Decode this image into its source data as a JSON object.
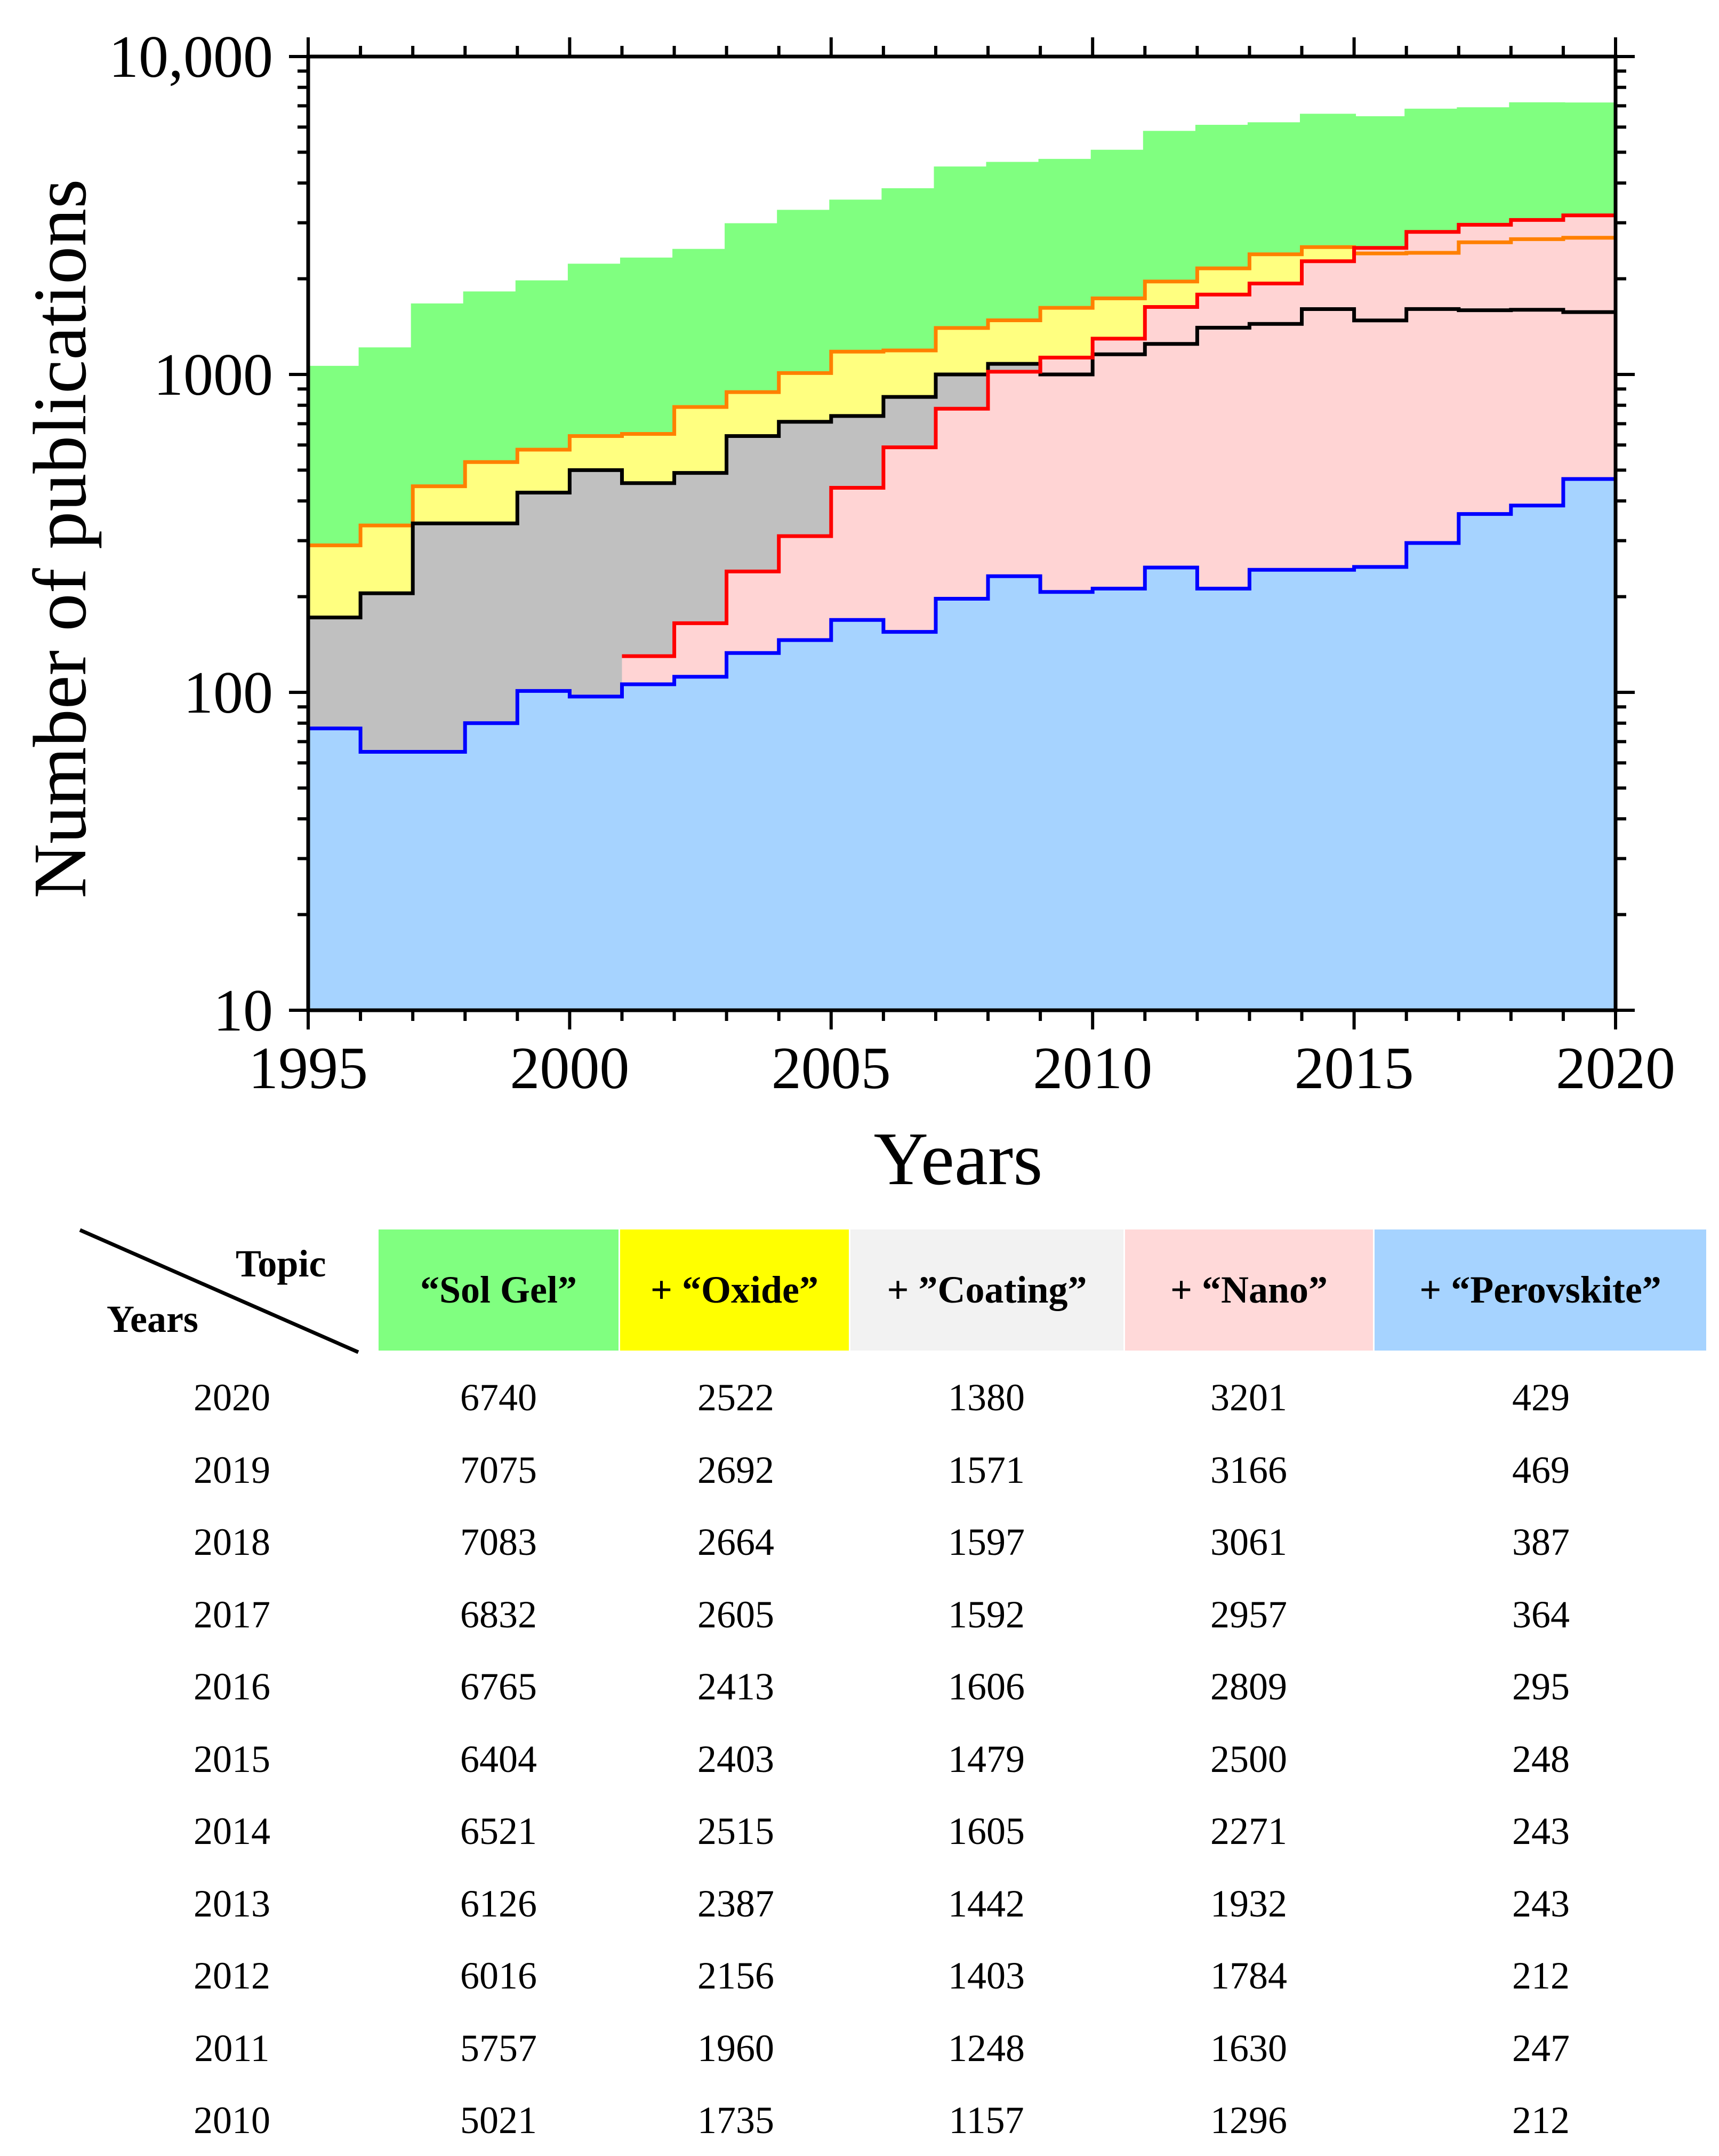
{
  "chart_data": {
    "type": "area",
    "title": "",
    "xlabel": "Years",
    "ylabel": "Number of publications",
    "yscale": "log",
    "ylim": [
      10,
      10000
    ],
    "xlim": [
      1995,
      2020
    ],
    "xticks": [
      "1995",
      "2000",
      "2005",
      "2010",
      "2015",
      "2020"
    ],
    "yticks": [
      "10",
      "100",
      "1000",
      "10,000"
    ],
    "x": [
      1995,
      1996,
      1997,
      1998,
      1999,
      2000,
      2001,
      2002,
      2003,
      2004,
      2005,
      2006,
      2007,
      2008,
      2009,
      2010,
      2011,
      2012,
      2013,
      2014,
      2015,
      2016,
      2017,
      2018,
      2019
    ],
    "series": [
      {
        "name": "Sol Gel",
        "fill": "#80ff80",
        "line": "#80ff80",
        "values": [
          1050,
          1200,
          1650,
          1800,
          1950,
          2200,
          2300,
          2450,
          2950,
          3250,
          3500,
          3800,
          4450,
          4600,
          4700,
          5021,
          5757,
          6016,
          6126,
          6521,
          6404,
          6765,
          6832,
          7083,
          7075
        ]
      },
      {
        "name": "Oxide",
        "fill": "#ffff80",
        "line": "#ff8000",
        "values": [
          290,
          335,
          445,
          530,
          580,
          640,
          650,
          790,
          880,
          1010,
          1180,
          1190,
          1400,
          1480,
          1620,
          1735,
          1960,
          2156,
          2387,
          2515,
          2403,
          2413,
          2605,
          2664,
          2692
        ]
      },
      {
        "name": "Coating",
        "fill": "#c0c0c0",
        "line": "#000000",
        "values": [
          172,
          205,
          340,
          340,
          425,
          500,
          455,
          490,
          640,
          710,
          740,
          850,
          1000,
          1080,
          1000,
          1157,
          1248,
          1403,
          1442,
          1605,
          1479,
          1606,
          1592,
          1597,
          1571
        ]
      },
      {
        "name": "Nano",
        "fill": "#ffd4d4",
        "line": "#ff0000",
        "start_index": 6,
        "values": [
          null,
          null,
          null,
          null,
          null,
          null,
          130,
          165,
          240,
          310,
          440,
          590,
          780,
          1020,
          1130,
          1296,
          1630,
          1784,
          1932,
          2271,
          2500,
          2809,
          2957,
          3061,
          3166
        ]
      },
      {
        "name": "Perovskite",
        "fill": "#a6d3ff",
        "line": "#0000ff",
        "values": [
          77,
          65,
          65,
          80,
          101,
          97,
          106,
          112,
          133,
          146,
          169,
          155,
          197,
          232,
          207,
          212,
          247,
          212,
          243,
          243,
          248,
          295,
          364,
          387,
          469
        ]
      }
    ]
  },
  "table": {
    "corner_topic": "Topic",
    "corner_years": "Years",
    "headers": [
      {
        "label": "“Sol Gel”",
        "color": "#80ff80"
      },
      {
        "label": "+ “Oxide”",
        "color": "#ffff00"
      },
      {
        "label": "+ ”Coating”",
        "color": "#f2f2f2"
      },
      {
        "label": "+ “Nano”",
        "color": "#ffd9d9"
      },
      {
        "label": "+ “Perovskite”",
        "color": "#a6d3ff"
      }
    ],
    "rows": [
      [
        "2020",
        "6740",
        "2522",
        "1380",
        "3201",
        "429"
      ],
      [
        "2019",
        "7075",
        "2692",
        "1571",
        "3166",
        "469"
      ],
      [
        "2018",
        "7083",
        "2664",
        "1597",
        "3061",
        "387"
      ],
      [
        "2017",
        "6832",
        "2605",
        "1592",
        "2957",
        "364"
      ],
      [
        "2016",
        "6765",
        "2413",
        "1606",
        "2809",
        "295"
      ],
      [
        "2015",
        "6404",
        "2403",
        "1479",
        "2500",
        "248"
      ],
      [
        "2014",
        "6521",
        "2515",
        "1605",
        "2271",
        "243"
      ],
      [
        "2013",
        "6126",
        "2387",
        "1442",
        "1932",
        "243"
      ],
      [
        "2012",
        "6016",
        "2156",
        "1403",
        "1784",
        "212"
      ],
      [
        "2011",
        "5757",
        "1960",
        "1248",
        "1630",
        "247"
      ],
      [
        "2010",
        "5021",
        "1735",
        "1157",
        "1296",
        "212"
      ]
    ]
  }
}
